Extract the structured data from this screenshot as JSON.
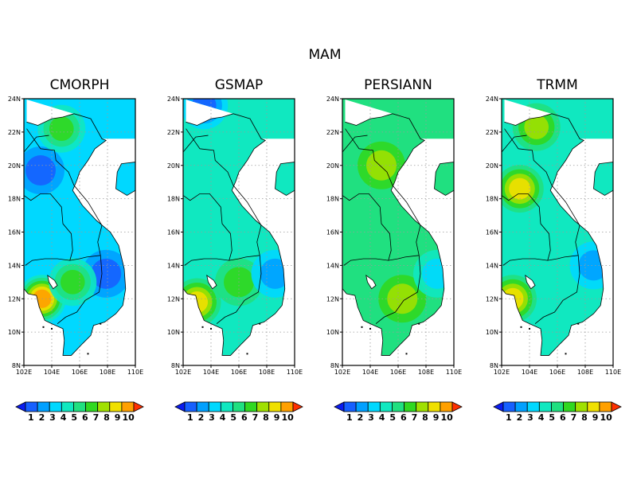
{
  "figure": {
    "title": "MAM"
  },
  "chart_data": [
    {
      "type": "heatmap",
      "title": "CMORPH",
      "x_ticks": [
        "102E",
        "104E",
        "106E",
        "108E",
        "110E"
      ],
      "y_ticks": [
        "8N",
        "10N",
        "12N",
        "14N",
        "16N",
        "18N",
        "20N",
        "22N",
        "24N"
      ],
      "xlim": [
        102,
        110
      ],
      "ylim": [
        8,
        24
      ],
      "grid": true,
      "colorbar": {
        "levels": [
          "1",
          "2",
          "3",
          "4",
          "5",
          "6",
          "7",
          "8",
          "9",
          "10"
        ],
        "colors": [
          "#0a1cf0",
          "#1660ff",
          "#00a0ff",
          "#00d8ff",
          "#10e8c0",
          "#20e080",
          "#30d820",
          "#a0e000",
          "#f0e000",
          "#ffa000",
          "#ff3000"
        ]
      },
      "hotspots": [
        {
          "lon": 103.3,
          "lat": 12.0,
          "value": 9.5
        },
        {
          "lon": 107.9,
          "lat": 13.5,
          "value": 1.2
        },
        {
          "lon": 103.2,
          "lat": 19.7,
          "value": 1.8
        },
        {
          "lon": 105.5,
          "lat": 13.0,
          "value": 6.0
        },
        {
          "lon": 104.7,
          "lat": 22.2,
          "value": 6.0
        }
      ],
      "base_value": 3.4
    },
    {
      "type": "heatmap",
      "title": "GSMAP",
      "x_ticks": [
        "102E",
        "104E",
        "106E",
        "108E",
        "110E"
      ],
      "y_ticks": [
        "8N",
        "10N",
        "12N",
        "14N",
        "16N",
        "18N",
        "20N",
        "22N",
        "24N"
      ],
      "xlim": [
        102,
        110
      ],
      "ylim": [
        8,
        24
      ],
      "grid": true,
      "colorbar": {
        "levels": [
          "1",
          "2",
          "3",
          "4",
          "5",
          "6",
          "7",
          "8",
          "9",
          "10"
        ],
        "colors": [
          "#0a1cf0",
          "#1660ff",
          "#00a0ff",
          "#00d8ff",
          "#10e8c0",
          "#20e080",
          "#30d820",
          "#a0e000",
          "#f0e000",
          "#ffa000",
          "#ff3000"
        ]
      },
      "hotspots": [
        {
          "lon": 103.0,
          "lat": 11.8,
          "value": 8.5
        },
        {
          "lon": 106.0,
          "lat": 13.0,
          "value": 6.0
        },
        {
          "lon": 103.5,
          "lat": 23.6,
          "value": 1.5
        },
        {
          "lon": 108.6,
          "lat": 13.5,
          "value": 2.5
        }
      ],
      "base_value": 4.2
    },
    {
      "type": "heatmap",
      "title": "PERSIANN",
      "x_ticks": [
        "102E",
        "104E",
        "106E",
        "108E",
        "110E"
      ],
      "y_ticks": [
        "8N",
        "10N",
        "12N",
        "14N",
        "16N",
        "18N",
        "20N",
        "22N",
        "24N"
      ],
      "xlim": [
        102,
        110
      ],
      "ylim": [
        8,
        24
      ],
      "grid": true,
      "colorbar": {
        "levels": [
          "1",
          "2",
          "3",
          "4",
          "5",
          "6",
          "7",
          "8",
          "9",
          "10"
        ],
        "colors": [
          "#0a1cf0",
          "#1660ff",
          "#00a0ff",
          "#00d8ff",
          "#10e8c0",
          "#20e080",
          "#30d820",
          "#a0e000",
          "#f0e000",
          "#ffa000",
          "#ff3000"
        ]
      },
      "hotspots": [
        {
          "lon": 104.8,
          "lat": 20.0,
          "value": 7.0
        },
        {
          "lon": 106.3,
          "lat": 12.0,
          "value": 7.0
        },
        {
          "lon": 108.8,
          "lat": 13.5,
          "value": 3.5
        }
      ],
      "base_value": 5.4
    },
    {
      "type": "heatmap",
      "title": "TRMM",
      "x_ticks": [
        "102E",
        "104E",
        "106E",
        "108E",
        "110E"
      ],
      "y_ticks": [
        "8N",
        "10N",
        "12N",
        "14N",
        "16N",
        "18N",
        "20N",
        "22N",
        "24N"
      ],
      "xlim": [
        102,
        110
      ],
      "ylim": [
        8,
        24
      ],
      "grid": true,
      "colorbar": {
        "levels": [
          "1",
          "2",
          "3",
          "4",
          "5",
          "6",
          "7",
          "8",
          "9",
          "10"
        ],
        "colors": [
          "#0a1cf0",
          "#1660ff",
          "#00a0ff",
          "#00d8ff",
          "#10e8c0",
          "#20e080",
          "#30d820",
          "#a0e000",
          "#f0e000",
          "#ffa000",
          "#ff3000"
        ]
      },
      "hotspots": [
        {
          "lon": 103.3,
          "lat": 18.6,
          "value": 7.5
        },
        {
          "lon": 102.8,
          "lat": 12.0,
          "value": 8.0
        },
        {
          "lon": 104.5,
          "lat": 22.3,
          "value": 6.5
        },
        {
          "lon": 108.6,
          "lat": 14.0,
          "value": 2.5
        }
      ],
      "base_value": 4.0
    }
  ],
  "map": {
    "outline": [
      [
        102.2,
        22.6
      ],
      [
        103.0,
        22.4
      ],
      [
        104.0,
        22.8
      ],
      [
        104.8,
        22.9
      ],
      [
        105.6,
        23.1
      ],
      [
        106.8,
        22.8
      ],
      [
        107.6,
        21.6
      ],
      [
        107.9,
        21.5
      ],
      [
        107.1,
        21.0
      ],
      [
        106.6,
        20.3
      ],
      [
        106.0,
        19.6
      ],
      [
        105.8,
        19.1
      ],
      [
        105.5,
        18.5
      ],
      [
        106.2,
        17.6
      ],
      [
        107.2,
        16.7
      ],
      [
        108.2,
        16.0
      ],
      [
        108.8,
        15.2
      ],
      [
        109.2,
        13.8
      ],
      [
        109.3,
        12.6
      ],
      [
        109.1,
        11.6
      ],
      [
        108.6,
        11.1
      ],
      [
        107.8,
        10.6
      ],
      [
        107.0,
        10.4
      ],
      [
        106.8,
        9.8
      ],
      [
        106.2,
        9.3
      ],
      [
        105.4,
        8.6
      ],
      [
        104.8,
        8.6
      ],
      [
        104.9,
        9.5
      ],
      [
        104.8,
        10.2
      ],
      [
        104.0,
        10.5
      ],
      [
        103.5,
        10.7
      ],
      [
        103.1,
        11.5
      ],
      [
        102.9,
        12.2
      ],
      [
        102.3,
        12.3
      ],
      [
        102.0,
        12.6
      ]
    ],
    "borders": [
      [
        [
          102.0,
          18.2
        ],
        [
          102.5,
          17.9
        ],
        [
          103.2,
          18.3
        ],
        [
          103.9,
          18.3
        ],
        [
          104.7,
          17.5
        ],
        [
          104.8,
          16.5
        ],
        [
          105.4,
          15.9
        ],
        [
          105.5,
          14.9
        ],
        [
          105.3,
          14.3
        ]
      ],
      [
        [
          102.1,
          14.0
        ],
        [
          102.6,
          14.3
        ],
        [
          103.5,
          14.4
        ],
        [
          104.4,
          14.4
        ],
        [
          105.3,
          14.3
        ],
        [
          106.0,
          14.4
        ],
        [
          106.5,
          14.5
        ],
        [
          107.5,
          14.6
        ]
      ],
      [
        [
          107.5,
          14.6
        ],
        [
          107.6,
          13.5
        ],
        [
          107.4,
          12.4
        ],
        [
          106.4,
          11.9
        ],
        [
          105.8,
          11.2
        ],
        [
          105.0,
          10.9
        ],
        [
          104.4,
          10.5
        ]
      ],
      [
        [
          107.5,
          14.6
        ],
        [
          107.3,
          15.4
        ],
        [
          107.6,
          16.4
        ],
        [
          107.1,
          17.1
        ],
        [
          106.6,
          17.8
        ],
        [
          105.6,
          18.8
        ],
        [
          105.2,
          19.6
        ],
        [
          104.3,
          20.3
        ],
        [
          104.2,
          20.9
        ],
        [
          103.2,
          21.0
        ],
        [
          102.2,
          22.2
        ]
      ],
      [
        [
          102.0,
          20.8
        ],
        [
          102.9,
          21.7
        ],
        [
          103.8,
          21.8
        ]
      ]
    ],
    "lake": [
      [
        103.7,
        13.4
      ],
      [
        104.2,
        13.1
      ],
      [
        104.4,
        12.8
      ],
      [
        104.1,
        12.6
      ],
      [
        103.8,
        13.0
      ]
    ],
    "islands": [
      [
        104.0,
        10.2
      ],
      [
        106.6,
        8.7
      ],
      [
        107.5,
        10.5
      ],
      [
        103.4,
        10.3
      ]
    ]
  }
}
